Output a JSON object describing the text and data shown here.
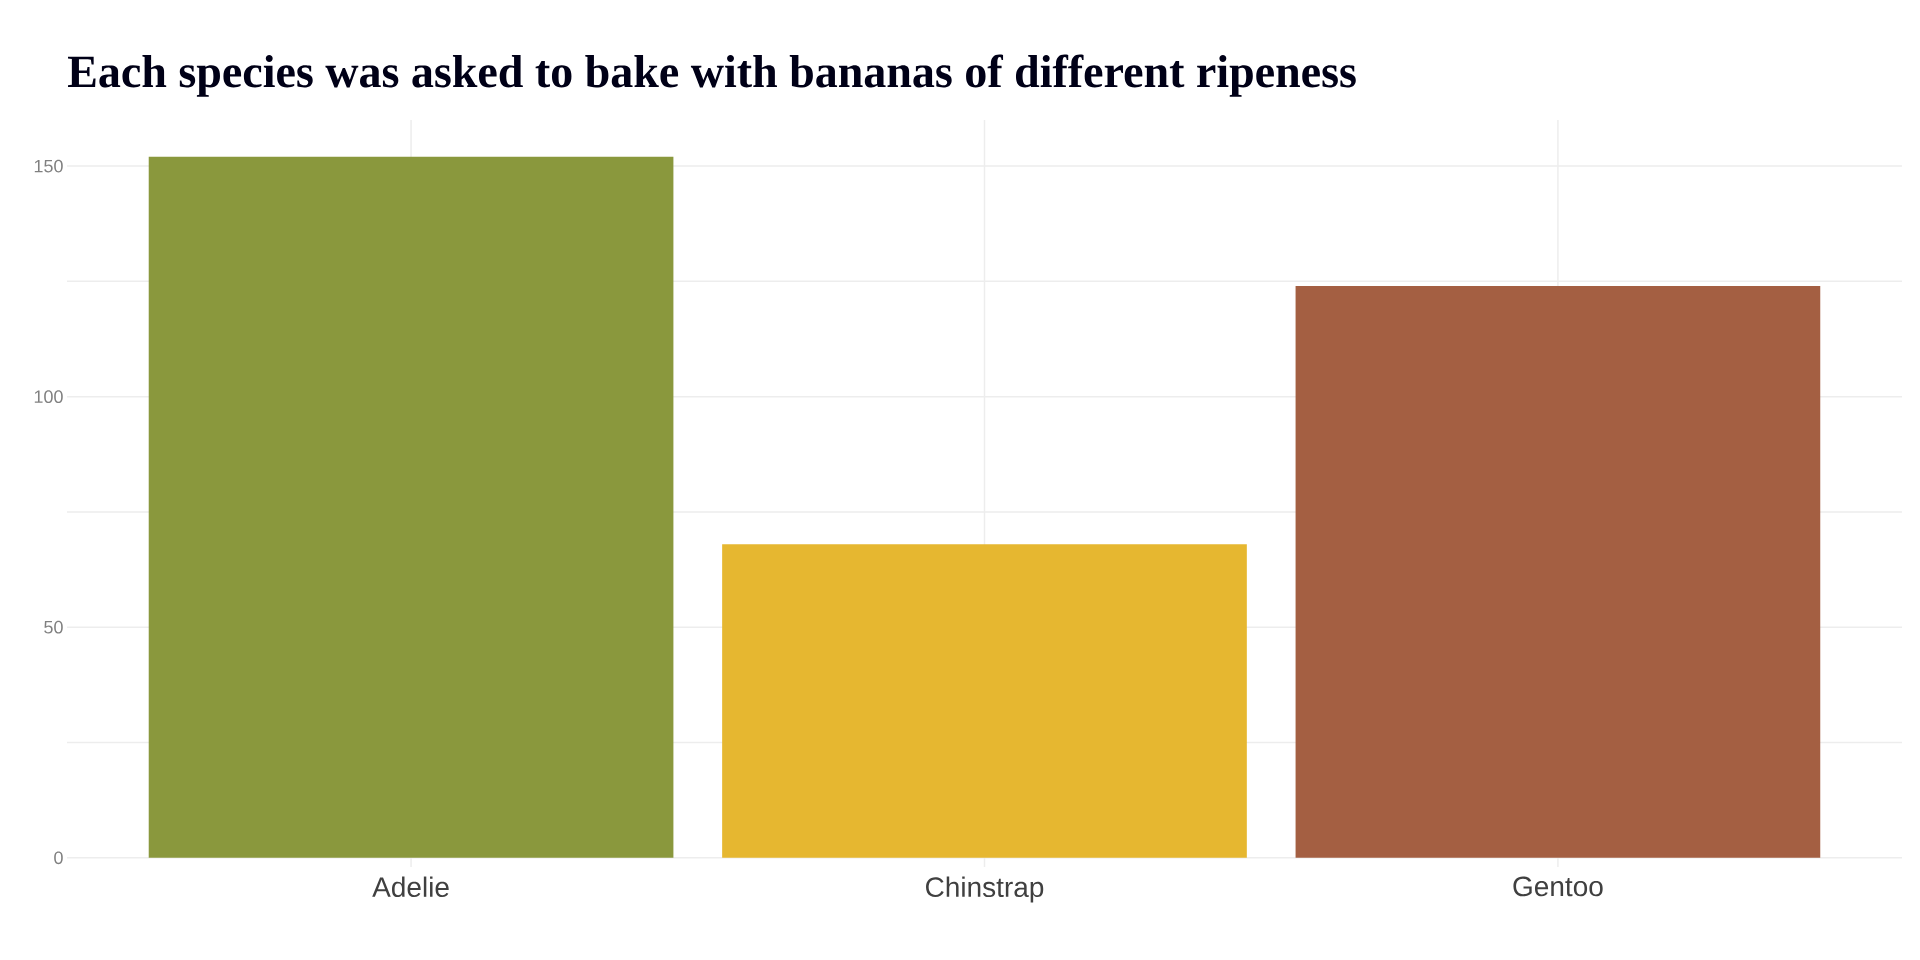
{
  "chart_data": {
    "type": "bar",
    "title": "Each species was asked to bake with bananas of different ripeness",
    "categories": [
      "Adelie",
      "Chinstrap",
      "Gentoo"
    ],
    "values": [
      152,
      68,
      124
    ],
    "colors": [
      "#8a983d",
      "#e6b730",
      "#a45f42"
    ],
    "ylim": [
      -2,
      160
    ],
    "yticks": [
      0,
      {
        "value": 25,
        "label": null
      },
      50,
      {
        "value": 75,
        "label": null
      },
      100,
      {
        "value": 125,
        "label": null
      },
      150
    ],
    "grid": true
  }
}
